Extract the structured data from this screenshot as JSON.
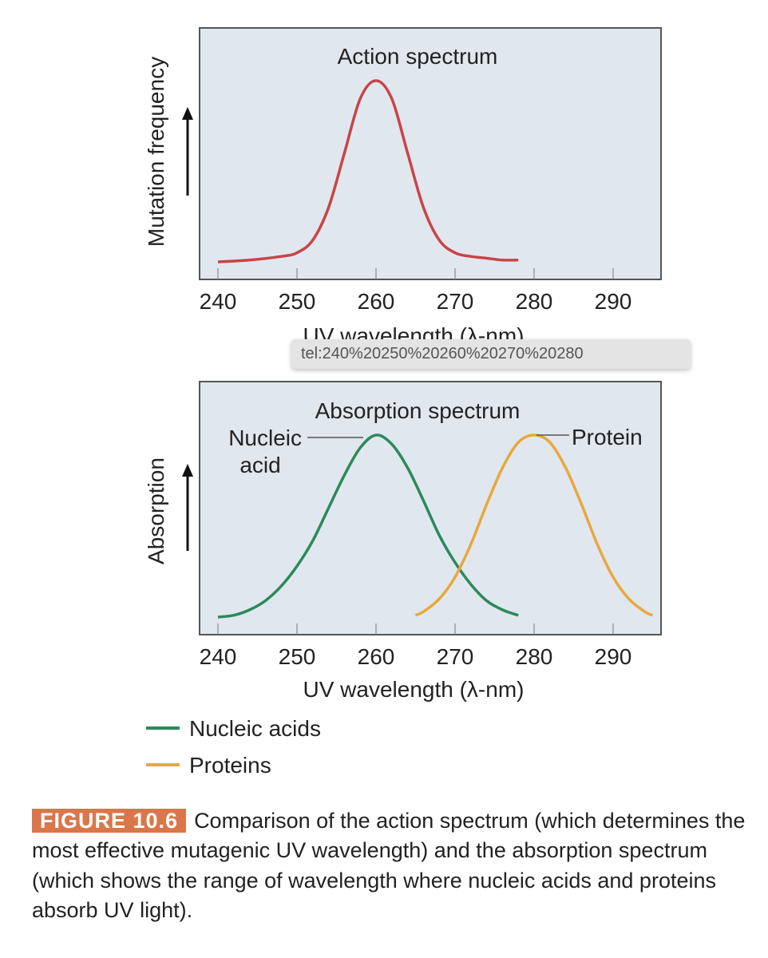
{
  "chart_data": [
    {
      "type": "line",
      "title": "Action spectrum",
      "ylabel": "Mutation frequency",
      "xlabel": "UV wavelength (λ-nm)",
      "xticks": [
        240,
        250,
        260,
        270,
        280,
        290
      ],
      "xlim": [
        237.8,
        296
      ],
      "grid": "vertical tick lines only",
      "series": [
        {
          "color": "#c94447",
          "x": [
            240,
            244,
            248,
            250,
            252,
            254,
            256,
            258,
            260,
            262,
            264,
            266,
            268,
            270,
            272,
            274,
            276,
            278
          ],
          "y": [
            0,
            0.01,
            0.03,
            0.05,
            0.12,
            0.3,
            0.6,
            0.9,
            1,
            0.9,
            0.6,
            0.3,
            0.12,
            0.05,
            0.03,
            0.02,
            0.01,
            0.01
          ]
        }
      ]
    },
    {
      "type": "line",
      "title": "Absorption spectrum",
      "ylabel": "Absorption",
      "xlabel": "UV wavelength (λ-nm)",
      "xticks": [
        240,
        250,
        260,
        270,
        280,
        290
      ],
      "xlim": [
        237.8,
        296
      ],
      "annotations": [
        "Nucleic\nacid",
        "Protein"
      ],
      "series": [
        {
          "name": "Nucleic acids",
          "color": "#2a8a5a",
          "x": [
            240,
            242,
            244,
            246,
            248,
            250,
            252,
            254,
            256,
            258,
            260,
            262,
            264,
            266,
            268,
            270,
            272,
            274,
            276,
            278
          ],
          "y": [
            0,
            0.01,
            0.04,
            0.09,
            0.17,
            0.28,
            0.42,
            0.6,
            0.78,
            0.93,
            1,
            0.95,
            0.82,
            0.64,
            0.45,
            0.3,
            0.18,
            0.09,
            0.04,
            0.01
          ]
        },
        {
          "name": "Proteins",
          "color": "#e8a83c",
          "x": [
            265,
            266,
            268,
            270,
            272,
            274,
            276,
            278,
            280,
            282,
            284,
            286,
            288,
            290,
            292,
            294,
            295
          ],
          "y": [
            0.01,
            0.03,
            0.1,
            0.22,
            0.4,
            0.62,
            0.82,
            0.96,
            1,
            0.96,
            0.82,
            0.62,
            0.4,
            0.22,
            0.1,
            0.03,
            0.01
          ]
        }
      ]
    }
  ],
  "tooltip": "tel:240%20250%20260%20270%20280",
  "caption": {
    "badge": "FIGURE 10.6",
    "text": "Comparison of the action spectrum (which determines the most effective mutagenic UV wavelength) and the absorption spectrum (which shows the range of wavelength where nucleic acids and proteins absorb UV light)."
  }
}
